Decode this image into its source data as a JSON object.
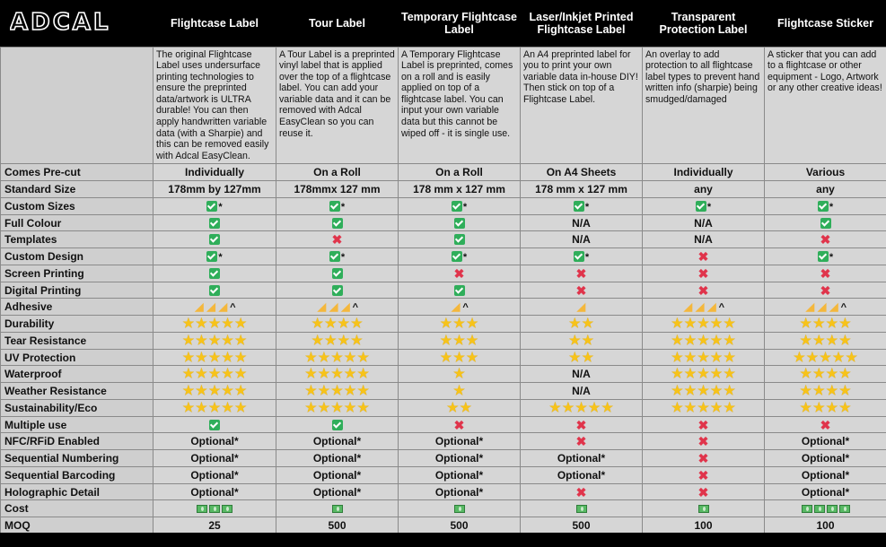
{
  "brand": "ADCAL",
  "colors": {
    "header_bg": "#000000",
    "cell_bg": "#d6d6d6",
    "check": "#2fae5a",
    "cross": "#e0344b",
    "star": "#f7c319"
  },
  "columns": [
    {
      "title": "Flightcase Label",
      "desc": "The original Flightcase Label uses undersurface printing technologies to ensure the preprinted data/artwork is ULTRA durable! You can then apply handwritten variable data (with a Sharpie) and this can be removed easily with Adcal EasyClean."
    },
    {
      "title": "Tour Label",
      "desc": "A Tour Label is a preprinted vinyl label that is applied over the top of a flightcase label. You can add your variable data and it can be removed with Adcal EasyClean so you can reuse it."
    },
    {
      "title": "Temporary Flightcase Label",
      "desc": "A Temporary Flightcase Label is preprinted, comes on a roll and is easily applied on top of a flightcase label. You can input your own variable data but this cannot be wiped off - it is single use."
    },
    {
      "title": "Laser/Inkjet Printed Flightcase Label",
      "desc": "An A4 preprinted label for you to print your own variable data in-house DIY! Then stick on top of a Flightcase Label."
    },
    {
      "title": "Transparent Protection Label",
      "desc": "An overlay to add protection to all flightcase label types to prevent hand written info (sharpie) being smudged/damaged"
    },
    {
      "title": "Flightcase Sticker",
      "desc": "A sticker that you can add to a flightcase or other equipment - Logo, Artwork or any other creative ideas!"
    }
  ],
  "rows": [
    {
      "label": "Comes Pre-cut",
      "cells": [
        {
          "t": "text",
          "v": "Individually"
        },
        {
          "t": "text",
          "v": "On a Roll"
        },
        {
          "t": "text",
          "v": "On a Roll"
        },
        {
          "t": "text",
          "v": "On A4 Sheets"
        },
        {
          "t": "text",
          "v": "Individually"
        },
        {
          "t": "text",
          "v": "Various"
        }
      ]
    },
    {
      "label": "Standard Size",
      "cells": [
        {
          "t": "text",
          "v": "178mm by 127mm"
        },
        {
          "t": "text",
          "v": "178mmx 127 mm"
        },
        {
          "t": "text",
          "v": "178 mm x 127 mm"
        },
        {
          "t": "text",
          "v": "178 mm x 127 mm"
        },
        {
          "t": "text",
          "v": "any"
        },
        {
          "t": "text",
          "v": "any"
        }
      ]
    },
    {
      "label": "Custom Sizes",
      "cells": [
        {
          "t": "check",
          "s": "*"
        },
        {
          "t": "check",
          "s": "*"
        },
        {
          "t": "check",
          "s": "*"
        },
        {
          "t": "check",
          "s": "*"
        },
        {
          "t": "check",
          "s": "*"
        },
        {
          "t": "check",
          "s": "*"
        }
      ]
    },
    {
      "label": "Full Colour",
      "cells": [
        {
          "t": "check"
        },
        {
          "t": "check"
        },
        {
          "t": "check"
        },
        {
          "t": "text",
          "v": "N/A"
        },
        {
          "t": "text",
          "v": "N/A"
        },
        {
          "t": "check"
        }
      ]
    },
    {
      "label": "Templates",
      "cells": [
        {
          "t": "check"
        },
        {
          "t": "cross"
        },
        {
          "t": "check"
        },
        {
          "t": "text",
          "v": "N/A"
        },
        {
          "t": "text",
          "v": "N/A"
        },
        {
          "t": "cross"
        }
      ]
    },
    {
      "label": "Custom Design",
      "cells": [
        {
          "t": "check",
          "s": "*"
        },
        {
          "t": "check",
          "s": "*"
        },
        {
          "t": "check",
          "s": "*"
        },
        {
          "t": "check",
          "s": "*"
        },
        {
          "t": "cross"
        },
        {
          "t": "check",
          "s": "*"
        }
      ]
    },
    {
      "label": "Screen Printing",
      "cells": [
        {
          "t": "check"
        },
        {
          "t": "check"
        },
        {
          "t": "cross"
        },
        {
          "t": "cross"
        },
        {
          "t": "cross"
        },
        {
          "t": "cross"
        }
      ]
    },
    {
      "label": "Digital Printing",
      "cells": [
        {
          "t": "check"
        },
        {
          "t": "check"
        },
        {
          "t": "check"
        },
        {
          "t": "cross"
        },
        {
          "t": "cross"
        },
        {
          "t": "cross"
        }
      ]
    },
    {
      "label": "Adhesive",
      "cells": [
        {
          "t": "arm",
          "n": 3,
          "s": "^"
        },
        {
          "t": "arm",
          "n": 3,
          "s": "^"
        },
        {
          "t": "arm",
          "n": 1,
          "s": "^"
        },
        {
          "t": "arm",
          "n": 1
        },
        {
          "t": "arm",
          "n": 3,
          "s": "^"
        },
        {
          "t": "arm",
          "n": 3,
          "s": "^"
        }
      ]
    },
    {
      "label": "Durability",
      "cells": [
        {
          "t": "star",
          "n": 5
        },
        {
          "t": "star",
          "n": 4
        },
        {
          "t": "star",
          "n": 3
        },
        {
          "t": "star",
          "n": 2
        },
        {
          "t": "star",
          "n": 5
        },
        {
          "t": "star",
          "n": 4
        }
      ]
    },
    {
      "label": "Tear Resistance",
      "cells": [
        {
          "t": "star",
          "n": 5
        },
        {
          "t": "star",
          "n": 4
        },
        {
          "t": "star",
          "n": 3
        },
        {
          "t": "star",
          "n": 2
        },
        {
          "t": "star",
          "n": 5
        },
        {
          "t": "star",
          "n": 4
        }
      ]
    },
    {
      "label": "UV Protection",
      "cells": [
        {
          "t": "star",
          "n": 5
        },
        {
          "t": "star",
          "n": 5
        },
        {
          "t": "star",
          "n": 3
        },
        {
          "t": "star",
          "n": 2
        },
        {
          "t": "star",
          "n": 5
        },
        {
          "t": "star",
          "n": 5
        }
      ]
    },
    {
      "label": "Waterproof",
      "cells": [
        {
          "t": "star",
          "n": 5
        },
        {
          "t": "star",
          "n": 5
        },
        {
          "t": "star",
          "n": 1
        },
        {
          "t": "text",
          "v": "N/A"
        },
        {
          "t": "star",
          "n": 5
        },
        {
          "t": "star",
          "n": 4
        }
      ]
    },
    {
      "label": "Weather Resistance",
      "cells": [
        {
          "t": "star",
          "n": 5
        },
        {
          "t": "star",
          "n": 5
        },
        {
          "t": "star",
          "n": 1
        },
        {
          "t": "text",
          "v": "N/A"
        },
        {
          "t": "star",
          "n": 5
        },
        {
          "t": "star",
          "n": 4
        }
      ]
    },
    {
      "label": "Sustainability/Eco",
      "cells": [
        {
          "t": "star",
          "n": 5
        },
        {
          "t": "star",
          "n": 5
        },
        {
          "t": "star",
          "n": 2
        },
        {
          "t": "star",
          "n": 5
        },
        {
          "t": "star",
          "n": 5
        },
        {
          "t": "star",
          "n": 4
        }
      ]
    },
    {
      "label": "Multiple use",
      "cells": [
        {
          "t": "check"
        },
        {
          "t": "check"
        },
        {
          "t": "cross"
        },
        {
          "t": "cross"
        },
        {
          "t": "cross"
        },
        {
          "t": "cross"
        }
      ]
    },
    {
      "label": "NFC/RFiD Enabled",
      "cells": [
        {
          "t": "text",
          "v": "Optional*"
        },
        {
          "t": "text",
          "v": "Optional*"
        },
        {
          "t": "text",
          "v": "Optional*"
        },
        {
          "t": "cross"
        },
        {
          "t": "cross"
        },
        {
          "t": "text",
          "v": "Optional*"
        }
      ]
    },
    {
      "label": "Sequential Numbering",
      "cells": [
        {
          "t": "text",
          "v": "Optional*"
        },
        {
          "t": "text",
          "v": "Optional*"
        },
        {
          "t": "text",
          "v": "Optional*"
        },
        {
          "t": "text",
          "v": "Optional*"
        },
        {
          "t": "cross"
        },
        {
          "t": "text",
          "v": "Optional*"
        }
      ]
    },
    {
      "label": "Sequential Barcoding",
      "cells": [
        {
          "t": "text",
          "v": "Optional*"
        },
        {
          "t": "text",
          "v": "Optional*"
        },
        {
          "t": "text",
          "v": "Optional*"
        },
        {
          "t": "text",
          "v": "Optional*"
        },
        {
          "t": "cross"
        },
        {
          "t": "text",
          "v": "Optional*"
        }
      ]
    },
    {
      "label": "Holographic Detail",
      "cells": [
        {
          "t": "text",
          "v": "Optional*"
        },
        {
          "t": "text",
          "v": "Optional*"
        },
        {
          "t": "text",
          "v": "Optional*"
        },
        {
          "t": "cross"
        },
        {
          "t": "cross"
        },
        {
          "t": "text",
          "v": "Optional*"
        }
      ]
    },
    {
      "label": "Cost",
      "cells": [
        {
          "t": "cash",
          "n": 3
        },
        {
          "t": "cash",
          "n": 1
        },
        {
          "t": "cash",
          "n": 1
        },
        {
          "t": "cash",
          "n": 1
        },
        {
          "t": "cash",
          "n": 1
        },
        {
          "t": "cash",
          "n": 4
        }
      ]
    },
    {
      "label": "MOQ",
      "cells": [
        {
          "t": "text",
          "v": "25"
        },
        {
          "t": "text",
          "v": "500"
        },
        {
          "t": "text",
          "v": "500"
        },
        {
          "t": "text",
          "v": "500"
        },
        {
          "t": "text",
          "v": "100"
        },
        {
          "t": "text",
          "v": "100"
        }
      ]
    }
  ]
}
